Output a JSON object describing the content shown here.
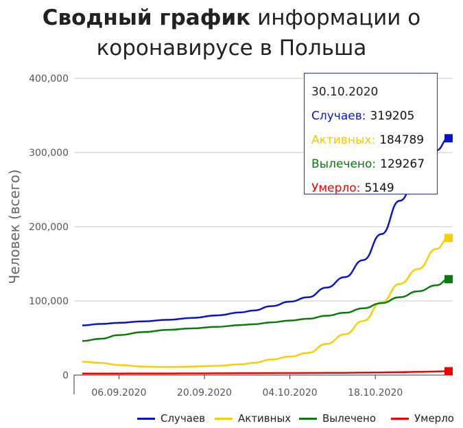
{
  "title": {
    "bold": "Сводный график",
    "rest": "информации о",
    "line2": "коронавирусе в Польша"
  },
  "colors": {
    "cases": "#0a14c8",
    "active": "#f5d000",
    "recovered": "#0a7a0a",
    "deaths": "#f20000"
  },
  "chart_data": {
    "type": "line",
    "ylabel": "Человек (всего)",
    "ylim": [
      0,
      400000
    ],
    "yticks": [
      "400,000",
      "300,000",
      "200,000",
      "100,000",
      "0"
    ],
    "ytick_values": [
      400000,
      300000,
      200000,
      100000,
      0
    ],
    "xticks": [
      "06.09.2020",
      "20.09.2020",
      "04.10.2020",
      "18.10.2020"
    ],
    "xtick_dates": [
      "2020-09-06",
      "2020-09-20",
      "2020-10-04",
      "2020-10-18"
    ],
    "x_dates": [
      "2020-08-31",
      "2020-09-03",
      "2020-09-06",
      "2020-09-10",
      "2020-09-14",
      "2020-09-18",
      "2020-09-22",
      "2020-09-26",
      "2020-09-28",
      "2020-10-01",
      "2020-10-04",
      "2020-10-07",
      "2020-10-10",
      "2020-10-13",
      "2020-10-16",
      "2020-10-19",
      "2020-10-22",
      "2020-10-25",
      "2020-10-28",
      "2020-10-30"
    ],
    "series": [
      {
        "name": "Случаев",
        "key": "cases",
        "values": [
          67000,
          69000,
          70500,
          72500,
          74500,
          77000,
          80500,
          84500,
          87000,
          93000,
          99000,
          105000,
          118000,
          132000,
          155000,
          190000,
          235000,
          272000,
          303000,
          319205
        ]
      },
      {
        "name": "Активных",
        "key": "active",
        "values": [
          18000,
          16500,
          13500,
          11500,
          11000,
          11500,
          12500,
          14500,
          16500,
          21000,
          25000,
          30000,
          42000,
          55000,
          73000,
          98000,
          123000,
          143000,
          170000,
          184789
        ]
      },
      {
        "name": "Вылечено",
        "key": "recovered",
        "values": [
          46000,
          49000,
          54000,
          58000,
          61000,
          63000,
          65000,
          67500,
          68500,
          71000,
          73500,
          76000,
          80000,
          84000,
          90000,
          97000,
          105000,
          113000,
          121000,
          129267
        ]
      },
      {
        "name": "Умерло",
        "key": "deaths",
        "values": [
          2000,
          2050,
          2100,
          2200,
          2250,
          2300,
          2400,
          2500,
          2550,
          2650,
          2750,
          2850,
          2950,
          3100,
          3300,
          3600,
          4000,
          4450,
          4900,
          5149
        ]
      }
    ]
  },
  "tooltip": {
    "date": "30.10.2020",
    "rows": [
      {
        "label": "Случаев:",
        "value": "319205",
        "key": "cases"
      },
      {
        "label": "Активных:",
        "value": "184789",
        "key": "active"
      },
      {
        "label": "Вылечено:",
        "value": "129267",
        "key": "recovered"
      },
      {
        "label": "Умерло:",
        "value": "5149",
        "key": "deaths"
      }
    ]
  },
  "legend": [
    {
      "label": "Случаев",
      "key": "cases"
    },
    {
      "label": "Активных",
      "key": "active"
    },
    {
      "label": "Вылечено",
      "key": "recovered"
    },
    {
      "label": "Умерло",
      "key": "deaths"
    }
  ]
}
